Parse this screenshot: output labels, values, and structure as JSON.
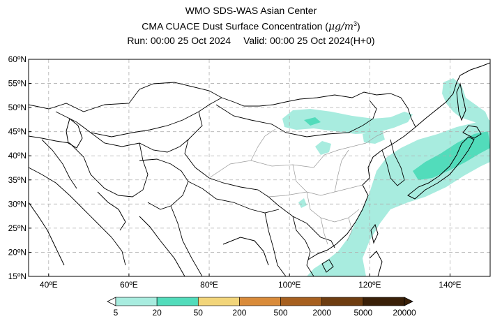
{
  "header": {
    "title": "WMO SDS-WAS Asian Center",
    "subtitle_prefix": "CMA CUACE Dust Surface Concentration (",
    "subtitle_unit": "μg/m",
    "subtitle_exp": "3",
    "subtitle_suffix": ")",
    "run_text": "Run: 00:00 25 Oct 2024",
    "valid_text": "Valid: 00:00 25 Oct 2024(H+0)"
  },
  "map": {
    "lon_range": [
      35,
      150
    ],
    "lat_range": [
      15,
      60
    ],
    "lat_labels": [
      {
        "lat": 60,
        "text": "60ºN"
      },
      {
        "lat": 55,
        "text": "55ºN"
      },
      {
        "lat": 50,
        "text": "50ºN"
      },
      {
        "lat": 45,
        "text": "45ºN"
      },
      {
        "lat": 40,
        "text": "40ºN"
      },
      {
        "lat": 35,
        "text": "35ºN"
      },
      {
        "lat": 30,
        "text": "30ºN"
      },
      {
        "lat": 25,
        "text": "25ºN"
      },
      {
        "lat": 20,
        "text": "20ºN"
      },
      {
        "lat": 15,
        "text": "15ºN"
      }
    ],
    "lon_labels": [
      {
        "lon": 40,
        "text": "40ºE"
      },
      {
        "lon": 60,
        "text": "60ºE"
      },
      {
        "lon": 80,
        "text": "80ºE"
      },
      {
        "lon": 100,
        "text": "100ºE"
      },
      {
        "lon": 120,
        "text": "120ºE"
      },
      {
        "lon": 140,
        "text": "140ºE"
      }
    ],
    "grid": true,
    "colors": {
      "light": "#a8ecdf",
      "mid": "#52dcbb",
      "border": "#000000",
      "province": "#9a9a9a",
      "grid": "#b0b0b0"
    }
  },
  "colorbar": {
    "labels": [
      "5",
      "20",
      "50",
      "200",
      "500",
      "2000",
      "5000",
      "20000"
    ],
    "colors": [
      "#a8ecdf",
      "#52dcbb",
      "#f2d57a",
      "#d98b3a",
      "#a7601f",
      "#6e3d11",
      "#3a2008"
    ]
  }
}
